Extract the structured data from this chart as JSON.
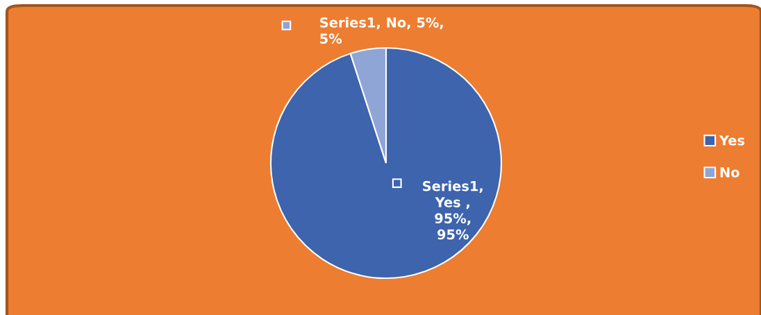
{
  "chart_data": {
    "type": "pie",
    "categories": [
      "Yes",
      "No"
    ],
    "values": [
      95,
      5
    ],
    "colors": [
      "#3d64ac",
      "#8fa5d6"
    ],
    "value_labels": [
      "Series1,\nYes ,\n95%,\n95%",
      "Series1, No, 5%,\n5%"
    ],
    "legend": "right"
  }
}
